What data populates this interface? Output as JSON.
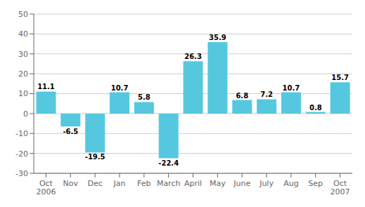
{
  "chart_data": {
    "type": "bar",
    "categories": [
      "Oct\n2006",
      "Nov",
      "Dec",
      "Jan",
      "Feb",
      "March",
      "April",
      "May",
      "June",
      "July",
      "Aug",
      "Sep",
      "Oct\n2007"
    ],
    "values": [
      11.1,
      -6.5,
      -19.5,
      10.7,
      5.8,
      -22.4,
      26.3,
      35.9,
      6.8,
      7.2,
      10.7,
      0.8,
      15.7
    ],
    "color": "#55C8E0",
    "ylim": [
      -30,
      50
    ],
    "yticks": [
      -30,
      -20,
      -10,
      0,
      10,
      20,
      30,
      40,
      50
    ],
    "grid": true,
    "data_labels": true
  }
}
